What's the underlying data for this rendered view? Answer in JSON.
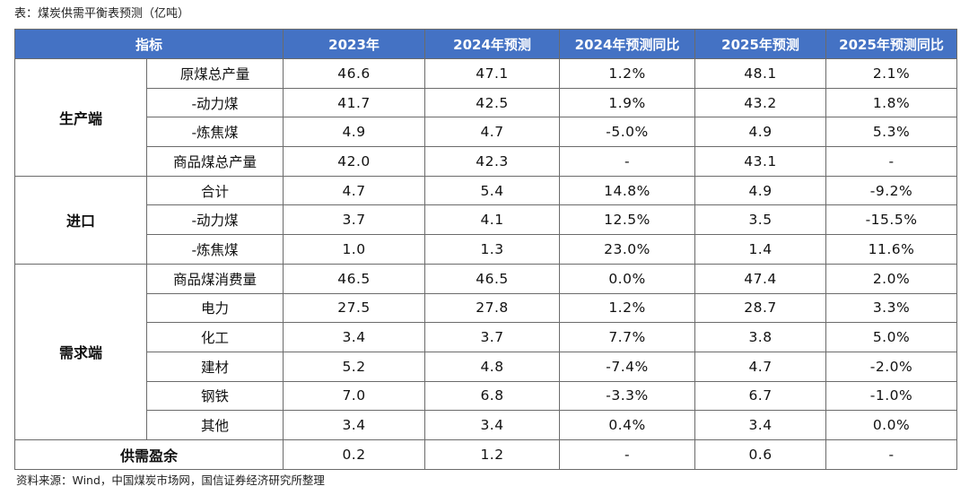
{
  "caption": "表：煤炭供需平衡表预测（亿吨）",
  "header": {
    "indicator": "指标",
    "col_2023": "2023年",
    "col_2024f": "2024年预测",
    "col_2024yoy": "2024年预测同比",
    "col_2025f": "2025年预测",
    "col_2025yoy": "2025年预测同比"
  },
  "groups": [
    {
      "category": "生产端",
      "rows": [
        {
          "name": "原煤总产量",
          "v2023": "46.6",
          "v2024": "47.1",
          "y2024": "1.2%",
          "v2025": "48.1",
          "y2025": "2.1%"
        },
        {
          "name": "-动力煤",
          "v2023": "41.7",
          "v2024": "42.5",
          "y2024": "1.9%",
          "v2025": "43.2",
          "y2025": "1.8%"
        },
        {
          "name": "-炼焦煤",
          "v2023": "4.9",
          "v2024": "4.7",
          "y2024": "-5.0%",
          "v2025": "4.9",
          "y2025": "5.3%"
        },
        {
          "name": "商品煤总产量",
          "v2023": "42.0",
          "v2024": "42.3",
          "y2024": "-",
          "v2025": "43.1",
          "y2025": "-"
        }
      ]
    },
    {
      "category": "进口",
      "rows": [
        {
          "name": "合计",
          "v2023": "4.7",
          "v2024": "5.4",
          "y2024": "14.8%",
          "v2025": "4.9",
          "y2025": "-9.2%"
        },
        {
          "name": "-动力煤",
          "v2023": "3.7",
          "v2024": "4.1",
          "y2024": "12.5%",
          "v2025": "3.5",
          "y2025": "-15.5%"
        },
        {
          "name": "-炼焦煤",
          "v2023": "1.0",
          "v2024": "1.3",
          "y2024": "23.0%",
          "v2025": "1.4",
          "y2025": "11.6%"
        }
      ]
    },
    {
      "category": "需求端",
      "rows": [
        {
          "name": "商品煤消费量",
          "v2023": "46.5",
          "v2024": "46.5",
          "y2024": "0.0%",
          "v2025": "47.4",
          "y2025": "2.0%"
        },
        {
          "name": "电力",
          "v2023": "27.5",
          "v2024": "27.8",
          "y2024": "1.2%",
          "v2025": "28.7",
          "y2025": "3.3%"
        },
        {
          "name": "化工",
          "v2023": "3.4",
          "v2024": "3.7",
          "y2024": "7.7%",
          "v2025": "3.8",
          "y2025": "5.0%"
        },
        {
          "name": "建材",
          "v2023": "5.2",
          "v2024": "4.8",
          "y2024": "-7.4%",
          "v2025": "4.7",
          "y2025": "-2.0%"
        },
        {
          "name": "钢铁",
          "v2023": "7.0",
          "v2024": "6.8",
          "y2024": "-3.3%",
          "v2025": "6.7",
          "y2025": "-1.0%"
        },
        {
          "name": "其他",
          "v2023": "3.4",
          "v2024": "3.4",
          "y2024": "0.4%",
          "v2025": "3.4",
          "y2025": "0.0%"
        }
      ]
    }
  ],
  "surplus": {
    "label": "供需盈余",
    "v2023": "0.2",
    "v2024": "1.2",
    "y2024": "-",
    "v2025": "0.6",
    "y2025": "-"
  },
  "source": "资料来源：Wind，中国煤炭市场网，国信证券经济研究所整理",
  "colors": {
    "header_bg": "#4472c4",
    "header_text": "#ffffff",
    "border": "#6b6b6b"
  }
}
